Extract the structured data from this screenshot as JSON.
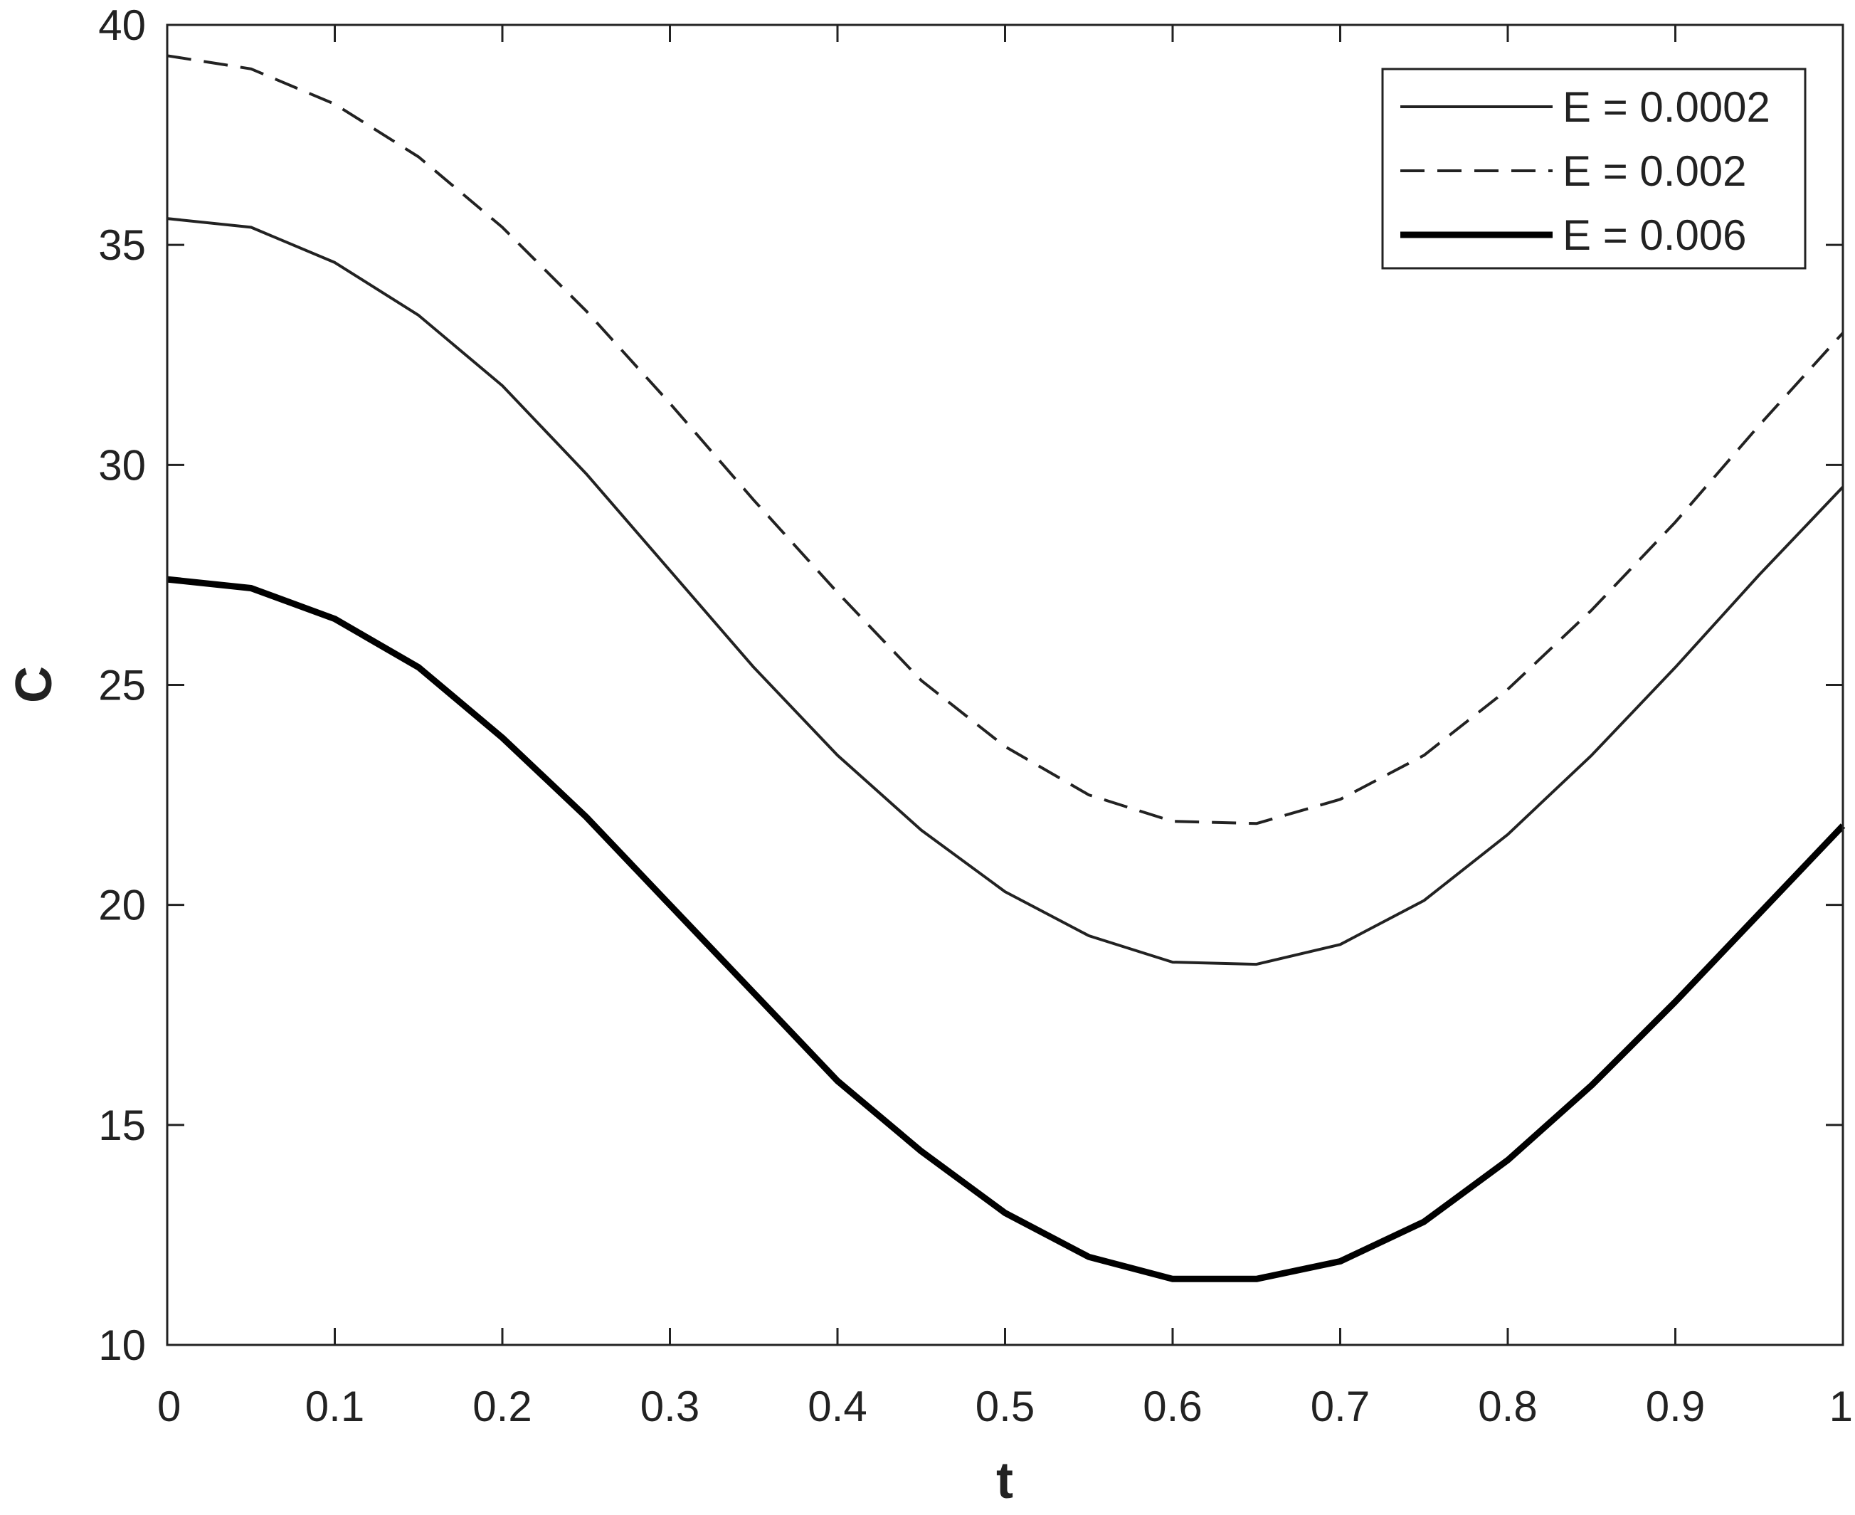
{
  "chart_data": {
    "type": "line",
    "xlabel": "t",
    "ylabel": "C",
    "xlim": [
      0,
      1
    ],
    "ylim": [
      10,
      40
    ],
    "xticks": [
      0,
      0.1,
      0.2,
      0.3,
      0.4,
      0.5,
      0.6,
      0.7,
      0.8,
      0.9,
      1
    ],
    "xtick_labels": [
      "0",
      "0.1",
      "0.2",
      "0.3",
      "0.4",
      "0.5",
      "0.6",
      "0.7",
      "0.8",
      "0.9",
      "1"
    ],
    "yticks": [
      10,
      15,
      20,
      25,
      30,
      35,
      40
    ],
    "ytick_labels": [
      "10",
      "15",
      "20",
      "25",
      "30",
      "35",
      "40"
    ],
    "grid": false,
    "legend_position": "top-right",
    "x": [
      0,
      0.05,
      0.1,
      0.15,
      0.2,
      0.25,
      0.3,
      0.35,
      0.4,
      0.45,
      0.5,
      0.55,
      0.6,
      0.65,
      0.7,
      0.75,
      0.8,
      0.85,
      0.9,
      0.95,
      1
    ],
    "series": [
      {
        "name": "E = 0.0002",
        "style": "solid",
        "weight": "thin",
        "color": "#222222",
        "values": [
          35.6,
          35.4,
          34.6,
          33.4,
          31.8,
          29.8,
          27.6,
          25.4,
          23.4,
          21.7,
          20.3,
          19.3,
          18.7,
          18.65,
          19.1,
          20.1,
          21.6,
          23.4,
          25.4,
          27.5,
          29.5
        ]
      },
      {
        "name": "E = 0.002",
        "style": "dashed",
        "weight": "thin",
        "color": "#222222",
        "values": [
          39.3,
          39.0,
          38.2,
          37.0,
          35.4,
          33.5,
          31.4,
          29.2,
          27.1,
          25.1,
          23.6,
          22.5,
          21.9,
          21.85,
          22.4,
          23.4,
          24.9,
          26.7,
          28.7,
          30.9,
          33.0
        ]
      },
      {
        "name": "E = 0.006",
        "style": "solid",
        "weight": "thick",
        "color": "#000000",
        "values": [
          27.4,
          27.2,
          26.5,
          25.4,
          23.8,
          22.0,
          20.0,
          18.0,
          16.0,
          14.4,
          13.0,
          12.0,
          11.5,
          11.5,
          11.9,
          12.8,
          14.2,
          15.9,
          17.8,
          19.8,
          21.8
        ]
      }
    ]
  }
}
